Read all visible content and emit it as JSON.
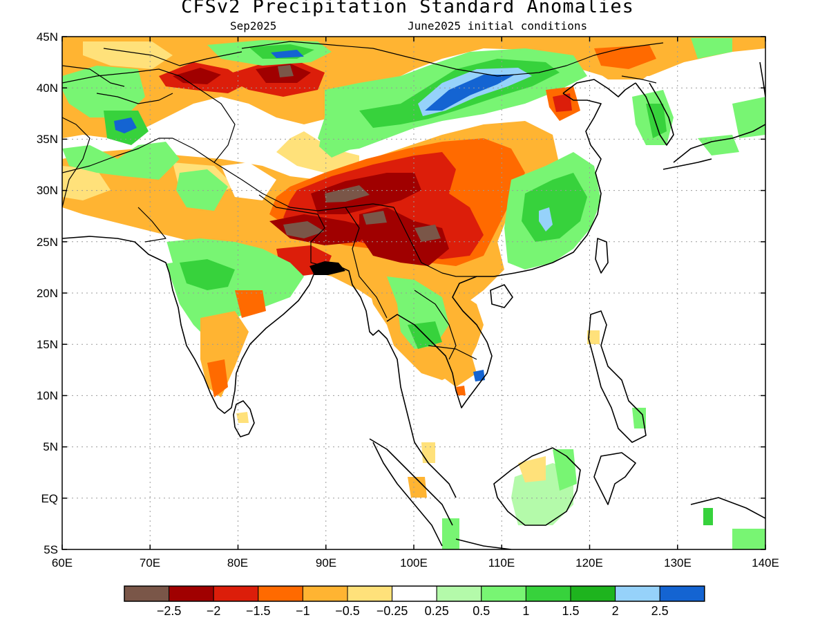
{
  "title": "CFSv2 Precipitation Standard Anomalies",
  "subtitle_left": "Sep2025",
  "subtitle_right": "June2025 initial conditions",
  "lat_labels": [
    "45N",
    "40N",
    "35N",
    "30N",
    "25N",
    "20N",
    "15N",
    "10N",
    "5N",
    "EQ",
    "5S"
  ],
  "lon_labels": [
    "60E",
    "70E",
    "80E",
    "90E",
    "100E",
    "110E",
    "120E",
    "130E",
    "140E"
  ],
  "colorbar": {
    "colors": [
      "#7a5648",
      "#a00000",
      "#dc1e0a",
      "#ff6a00",
      "#ffb432",
      "#ffe17a",
      "#ffffff",
      "#b4faaa",
      "#78f573",
      "#37d23c",
      "#1eb41e",
      "#96d2fa",
      "#1464d2"
    ],
    "labels": [
      "−2.5",
      "−2",
      "−1.5",
      "−1",
      "−0.5",
      "−0.25",
      "0.25",
      "0.5",
      "1",
      "1.5",
      "2",
      "2.5"
    ]
  },
  "anomaly_colors": {
    "brown": "#7a5648",
    "darkred": "#a00000",
    "red": "#dc1e0a",
    "orange": "#ff6a00",
    "lightorange": "#ffb432",
    "yellow": "#ffe17a",
    "lightgreen": "#b4faaa",
    "green": "#78f573",
    "midgreen": "#37d23c",
    "darkgreen": "#1eb41e",
    "lightblue": "#96d2fa",
    "blue": "#1464d2"
  }
}
